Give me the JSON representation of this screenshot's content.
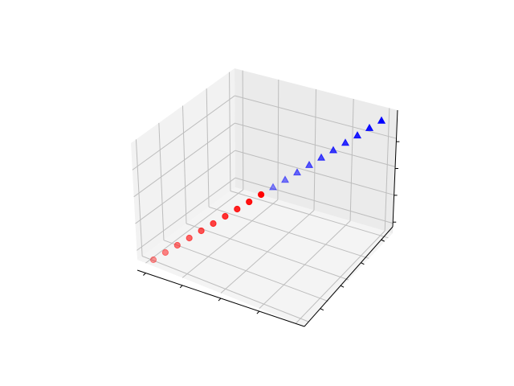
{
  "chart_data": {
    "type": "scatter",
    "projection": "3d",
    "title": "",
    "xlabel": "",
    "ylabel": "",
    "zlabel": "",
    "tick_labels_shown": false,
    "grid": true,
    "legend": "none",
    "pane_color": "#f2f2f2",
    "series": [
      {
        "marker": "circle",
        "color": "#ff0000",
        "point_count": 10
      },
      {
        "marker": "triangle",
        "color": "#0000ff",
        "point_count": 10
      }
    ]
  }
}
